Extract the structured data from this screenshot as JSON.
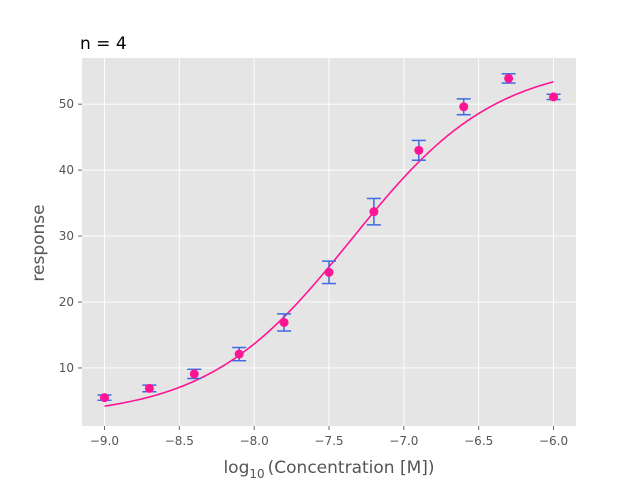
{
  "chart_data": {
    "type": "scatter",
    "title": "n = 4",
    "xlabel_prefix": "log",
    "xlabel_sub": "10",
    "xlabel_rest": "(Concentration [M])",
    "ylabel": "response",
    "xlim": [
      -9.15,
      -5.85
    ],
    "ylim": [
      1.2,
      57.0
    ],
    "xticks": [
      -9.0,
      -8.5,
      -8.0,
      -7.5,
      -7.0,
      -6.5,
      -6.0
    ],
    "xtick_labels": [
      "−9.0",
      "−8.5",
      "−8.0",
      "−7.5",
      "−7.0",
      "−6.5",
      "−6.0"
    ],
    "yticks": [
      10,
      20,
      30,
      40,
      50
    ],
    "ytick_labels": [
      "10",
      "20",
      "30",
      "40",
      "50"
    ],
    "grid": true,
    "colors": {
      "background": "#e5e5e5",
      "grid": "#ffffff",
      "points": "#ff1493",
      "fit": "#ff1493",
      "errorbars": "#4169e1"
    },
    "series": [
      {
        "kind": "points-with-error",
        "x": [
          -9.0,
          -8.7,
          -8.4,
          -8.1,
          -7.8,
          -7.5,
          -7.2,
          -6.9,
          -6.6,
          -6.3,
          -6.0
        ],
        "y": [
          5.5,
          6.9,
          9.1,
          12.1,
          16.9,
          24.5,
          33.7,
          43.0,
          49.6,
          53.9,
          51.1
        ],
        "yerr": [
          0.4,
          0.5,
          0.7,
          1.0,
          1.3,
          1.7,
          2.0,
          1.5,
          1.2,
          0.7,
          0.4
        ]
      },
      {
        "kind": "fit-curve",
        "model": "four-parameter logistic",
        "bottom": 2.5,
        "top": 56.5,
        "log_ec50": -7.35,
        "hill": 0.9
      }
    ]
  }
}
